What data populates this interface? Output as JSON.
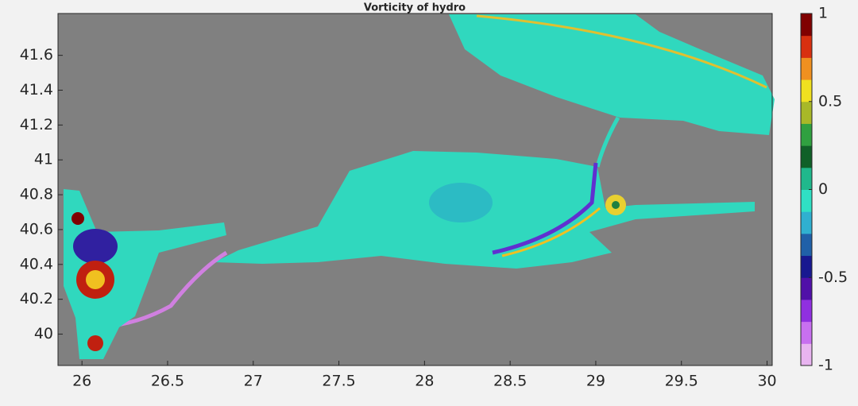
{
  "chart_data": {
    "type": "heatmap",
    "title": "Vorticity of hydro",
    "xlim": [
      25.86,
      30.03
    ],
    "xticks": [
      26,
      26.5,
      27,
      27.5,
      28,
      28.5,
      29,
      29.5,
      30
    ],
    "ylim": [
      39.82,
      41.84
    ],
    "yticks": [
      40,
      40.2,
      40.4,
      40.6,
      40.8,
      41,
      41.2,
      41.4,
      41.6
    ],
    "clim": [
      -1,
      1
    ],
    "cticks": [
      -1,
      -0.5,
      0,
      0.5,
      1
    ],
    "colormap": [
      "#e8b4f0",
      "#c870f0",
      "#9030e0",
      "#5010a8",
      "#181890",
      "#2060a8",
      "#30b0d0",
      "#30e0c4",
      "#20b88c",
      "#106028",
      "#30a040",
      "#a8b828",
      "#f0e020",
      "#f09020",
      "#d83010",
      "#800000"
    ],
    "background": "#808080"
  }
}
